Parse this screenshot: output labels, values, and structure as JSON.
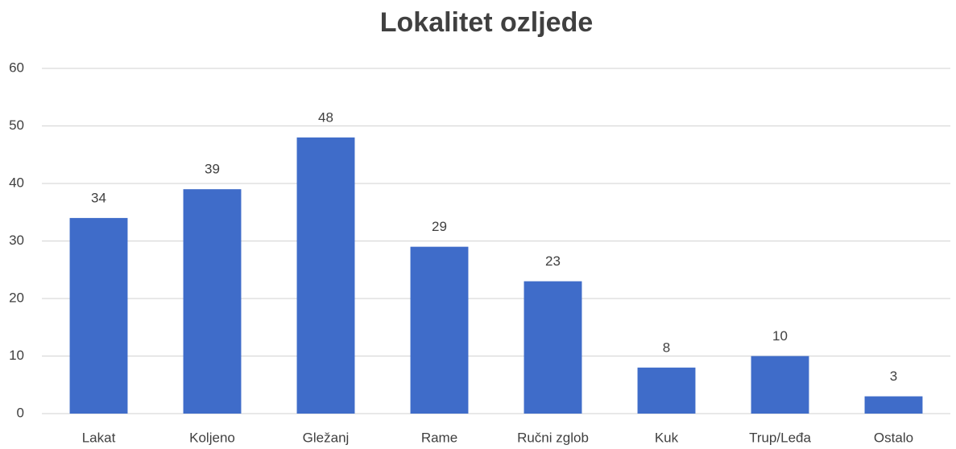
{
  "chart_data": {
    "type": "bar",
    "title": "Lokalitet ozljede",
    "categories": [
      "Lakat",
      "Koljeno",
      "Gležanj",
      "Rame",
      "Ručni zglob",
      "Kuk",
      "Trup/Leđa",
      "Ostalo"
    ],
    "values": [
      34,
      39,
      48,
      29,
      23,
      8,
      10,
      3
    ],
    "color": "#3f6cc9",
    "ylim": [
      0,
      60
    ],
    "yticks": [
      0,
      10,
      20,
      30,
      40,
      50,
      60
    ],
    "grid": true
  }
}
